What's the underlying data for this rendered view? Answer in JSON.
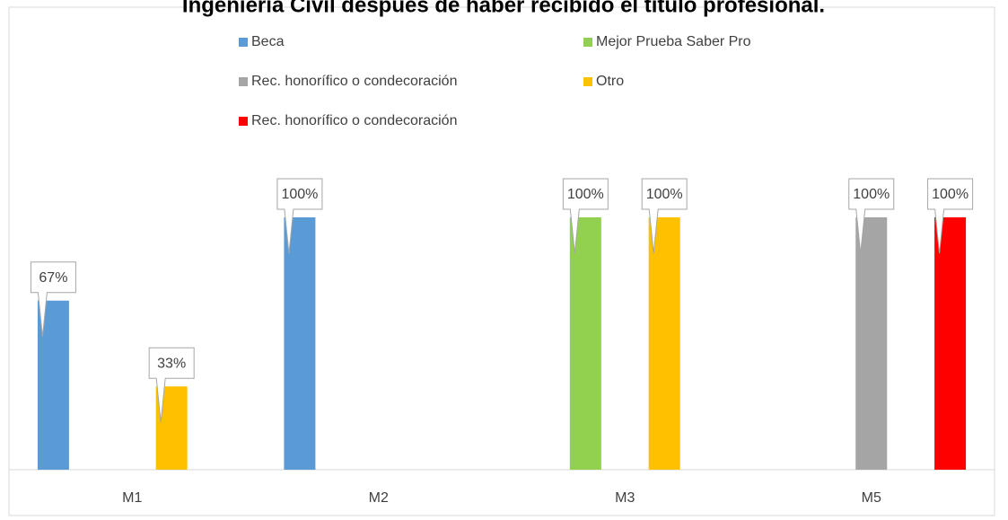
{
  "chart_data": {
    "type": "bar",
    "title": "Ingeniería Civil después de haber recibido el título profesional.",
    "categories": [
      "M1",
      "M2",
      "M3",
      "M5"
    ],
    "series": [
      {
        "name": "Beca",
        "color": "#5b9bd5",
        "values": [
          67,
          100,
          null,
          null
        ],
        "value_labels": [
          "67%",
          "100%",
          null,
          null
        ]
      },
      {
        "name": "Mejor Prueba Saber Pro",
        "color": "#92d050",
        "values": [
          null,
          null,
          100,
          null
        ],
        "value_labels": [
          null,
          null,
          "100%",
          null
        ]
      },
      {
        "name": "Rec. honorífico o condecoración",
        "color": "#a5a5a5",
        "values": [
          null,
          null,
          null,
          100
        ],
        "value_labels": [
          null,
          null,
          null,
          "100%"
        ]
      },
      {
        "name": "Otro",
        "color": "#ffc000",
        "values": [
          33,
          null,
          100,
          null
        ],
        "value_labels": [
          "33%",
          null,
          "100%",
          null
        ]
      },
      {
        "name": "Rec. honorífico o condecoración",
        "color": "#ff0000",
        "values": [
          null,
          null,
          null,
          100
        ],
        "value_labels": [
          null,
          null,
          null,
          "100%"
        ]
      }
    ],
    "ylim": [
      0,
      100
    ]
  }
}
